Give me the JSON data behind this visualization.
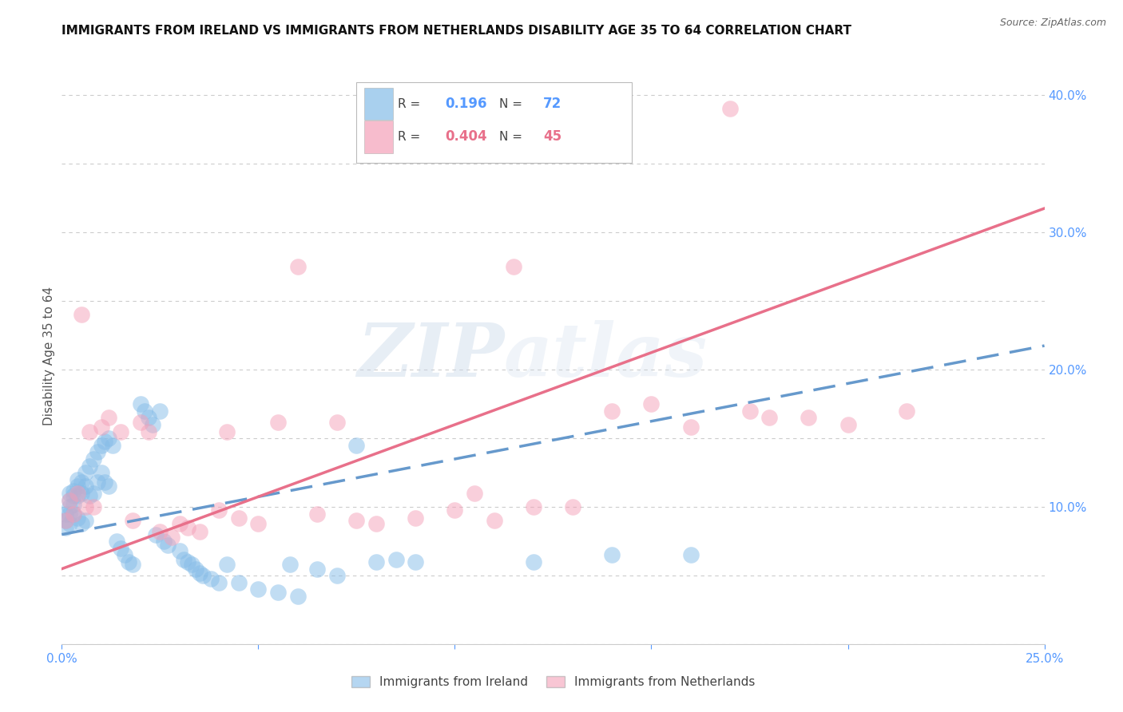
{
  "title": "IMMIGRANTS FROM IRELAND VS IMMIGRANTS FROM NETHERLANDS DISABILITY AGE 35 TO 64 CORRELATION CHART",
  "source": "Source: ZipAtlas.com",
  "ylabel": "Disability Age 35 to 64",
  "x_min": 0.0,
  "x_max": 0.25,
  "y_min": 0.0,
  "y_max": 0.42,
  "x_ticks": [
    0.0,
    0.05,
    0.1,
    0.15,
    0.2,
    0.25
  ],
  "x_tick_labels": [
    "0.0%",
    "",
    "",
    "",
    "",
    "25.0%"
  ],
  "y_ticks": [
    0.0,
    0.1,
    0.2,
    0.3,
    0.4
  ],
  "y_tick_labels_right": [
    "",
    "10.0%",
    "20.0%",
    "30.0%",
    "40.0%"
  ],
  "ireland_color": "#85bce8",
  "netherlands_color": "#f4a0b8",
  "ireland_line_color": "#6699cc",
  "netherlands_line_color": "#e8708a",
  "ireland_R": "0.196",
  "ireland_N": "72",
  "netherlands_R": "0.404",
  "netherlands_N": "45",
  "ireland_scatter_x": [
    0.001,
    0.001,
    0.001,
    0.002,
    0.002,
    0.002,
    0.002,
    0.002,
    0.003,
    0.003,
    0.003,
    0.003,
    0.004,
    0.004,
    0.004,
    0.004,
    0.005,
    0.005,
    0.005,
    0.006,
    0.006,
    0.006,
    0.007,
    0.007,
    0.008,
    0.008,
    0.009,
    0.009,
    0.01,
    0.01,
    0.011,
    0.011,
    0.012,
    0.012,
    0.013,
    0.014,
    0.015,
    0.016,
    0.017,
    0.018,
    0.02,
    0.021,
    0.022,
    0.023,
    0.024,
    0.025,
    0.026,
    0.027,
    0.03,
    0.031,
    0.032,
    0.033,
    0.034,
    0.035,
    0.036,
    0.038,
    0.04,
    0.042,
    0.045,
    0.05,
    0.055,
    0.058,
    0.06,
    0.065,
    0.07,
    0.075,
    0.08,
    0.085,
    0.09,
    0.12,
    0.14,
    0.16
  ],
  "ireland_scatter_y": [
    0.095,
    0.09,
    0.085,
    0.11,
    0.105,
    0.1,
    0.095,
    0.088,
    0.112,
    0.108,
    0.102,
    0.095,
    0.12,
    0.115,
    0.108,
    0.092,
    0.118,
    0.11,
    0.088,
    0.125,
    0.115,
    0.09,
    0.13,
    0.108,
    0.135,
    0.11,
    0.14,
    0.118,
    0.145,
    0.125,
    0.148,
    0.118,
    0.15,
    0.115,
    0.145,
    0.075,
    0.07,
    0.065,
    0.06,
    0.058,
    0.175,
    0.17,
    0.165,
    0.16,
    0.08,
    0.17,
    0.075,
    0.072,
    0.068,
    0.062,
    0.06,
    0.058,
    0.055,
    0.052,
    0.05,
    0.048,
    0.045,
    0.058,
    0.045,
    0.04,
    0.038,
    0.058,
    0.035,
    0.055,
    0.05,
    0.145,
    0.06,
    0.062,
    0.06,
    0.06,
    0.065,
    0.065
  ],
  "netherlands_scatter_x": [
    0.001,
    0.002,
    0.003,
    0.004,
    0.005,
    0.006,
    0.007,
    0.008,
    0.01,
    0.012,
    0.015,
    0.018,
    0.02,
    0.022,
    0.025,
    0.028,
    0.03,
    0.032,
    0.035,
    0.04,
    0.042,
    0.045,
    0.05,
    0.055,
    0.06,
    0.065,
    0.07,
    0.075,
    0.08,
    0.09,
    0.1,
    0.105,
    0.11,
    0.115,
    0.12,
    0.13,
    0.14,
    0.15,
    0.16,
    0.17,
    0.175,
    0.18,
    0.19,
    0.2,
    0.215
  ],
  "netherlands_scatter_y": [
    0.09,
    0.105,
    0.095,
    0.11,
    0.24,
    0.1,
    0.155,
    0.1,
    0.158,
    0.165,
    0.155,
    0.09,
    0.162,
    0.155,
    0.082,
    0.078,
    0.088,
    0.085,
    0.082,
    0.098,
    0.155,
    0.092,
    0.088,
    0.162,
    0.275,
    0.095,
    0.162,
    0.09,
    0.088,
    0.092,
    0.098,
    0.11,
    0.09,
    0.275,
    0.1,
    0.1,
    0.17,
    0.175,
    0.158,
    0.39,
    0.17,
    0.165,
    0.165,
    0.16,
    0.17
  ],
  "watermark_zip": "ZIP",
  "watermark_atlas": "atlas",
  "background_color": "#ffffff",
  "grid_color": "#cccccc",
  "ireland_line_intercept": 0.08,
  "ireland_line_slope": 0.55,
  "netherlands_line_intercept": 0.055,
  "netherlands_line_slope": 1.05
}
